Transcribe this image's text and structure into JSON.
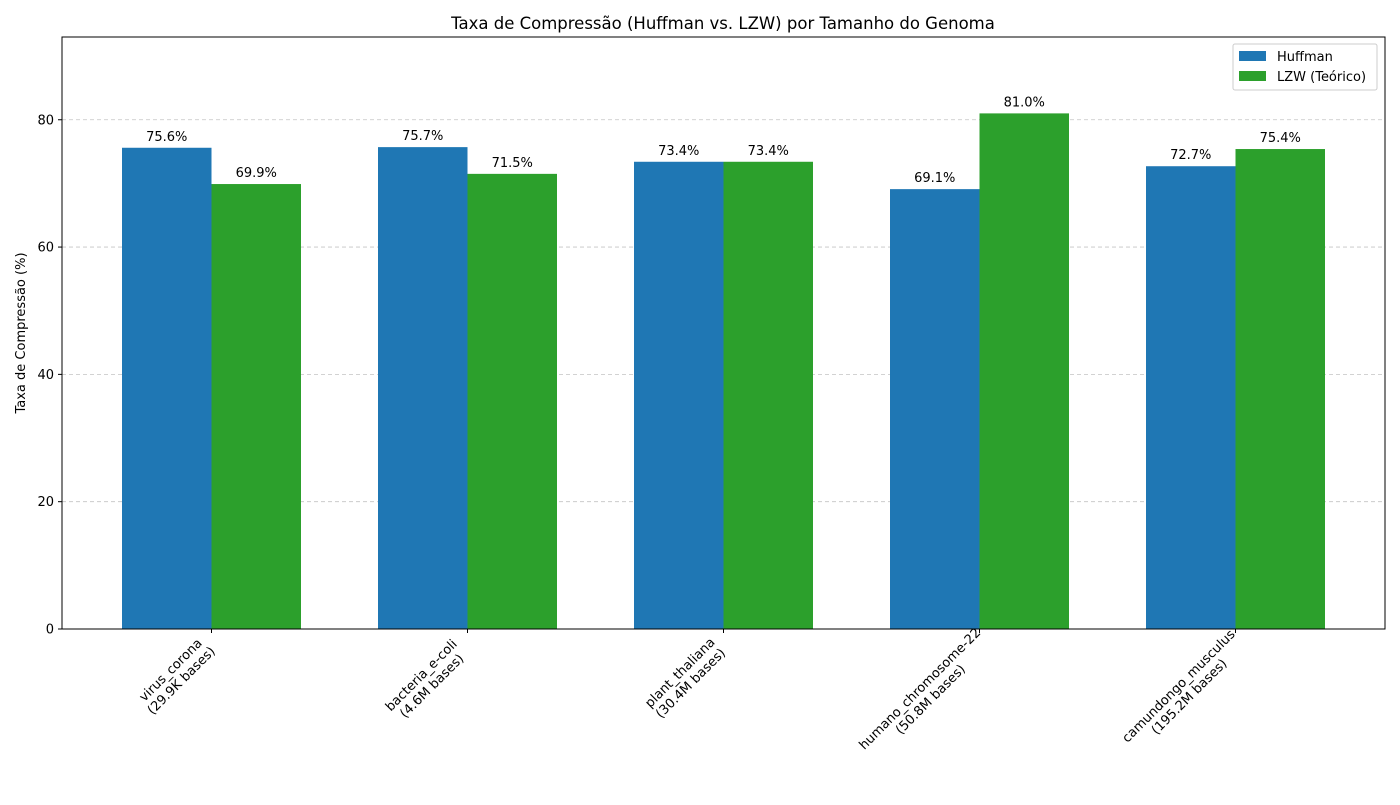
{
  "chart_data": {
    "type": "bar",
    "title": "Taxa de Compressão (Huffman vs. LZW) por Tamanho do Genoma",
    "xlabel": "",
    "ylabel": "Taxa de Compressão (%)",
    "ylim": [
      0,
      93
    ],
    "yticks": [
      0,
      20,
      40,
      60,
      80
    ],
    "grid": "horizontal dashed",
    "legend_position": "top-right",
    "categories": [
      [
        "virus_corona",
        "(29.9K bases)"
      ],
      [
        "bacteria_e-coli",
        "(4.6M bases)"
      ],
      [
        "plant_thaliana",
        "(30.4M bases)"
      ],
      [
        "humano_chromosome-22",
        "(50.8M bases)"
      ],
      [
        "camundongo_musculus",
        "(195.2M bases)"
      ]
    ],
    "series": [
      {
        "name": "Huffman",
        "color": "#1f77b4",
        "values": [
          75.6,
          75.7,
          73.4,
          69.1,
          72.7
        ],
        "labels": [
          "75.6%",
          "75.7%",
          "73.4%",
          "69.1%",
          "72.7%"
        ]
      },
      {
        "name": "LZW (Teórico)",
        "color": "#2ca02c",
        "values": [
          69.9,
          71.5,
          73.4,
          81.0,
          75.4
        ],
        "labels": [
          "69.9%",
          "71.5%",
          "73.4%",
          "81.0%",
          "75.4%"
        ]
      }
    ]
  }
}
